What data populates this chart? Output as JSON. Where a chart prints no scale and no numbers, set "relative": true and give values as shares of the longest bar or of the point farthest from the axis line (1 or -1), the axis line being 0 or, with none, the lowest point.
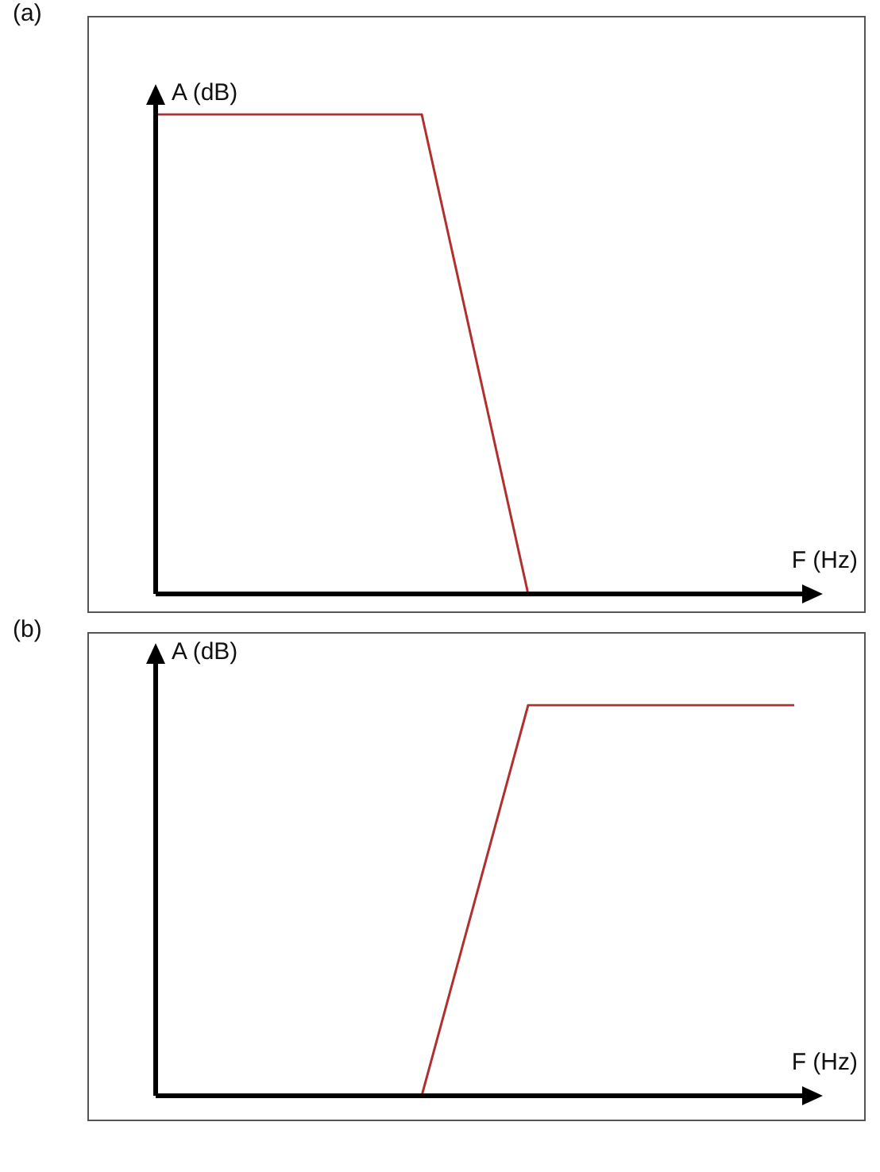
{
  "chart_data": [
    {
      "type": "line",
      "title": "(a)",
      "xlabel": "F (Hz)",
      "ylabel": "A (dB)",
      "relative": true,
      "tick_labels": false,
      "categories": [
        null,
        null,
        null,
        null,
        null,
        null,
        null,
        null,
        null,
        null,
        null,
        null,
        null,
        null,
        null,
        null,
        null,
        null,
        null,
        null,
        null,
        null,
        null,
        null,
        null
      ],
      "series": [
        {
          "color": "#b03030",
          "values": [
            1,
            null,
            null,
            null,
            null,
            null,
            null,
            null,
            null,
            null,
            1,
            null,
            null,
            null,
            0,
            null,
            null,
            null,
            null,
            null,
            null,
            null,
            null,
            null,
            0
          ]
        }
      ]
    },
    {
      "type": "line",
      "title": "(b)",
      "xlabel": "F (Hz)",
      "ylabel": "A (dB)",
      "relative": true,
      "tick_labels": false,
      "categories": [
        null,
        null,
        null,
        null,
        null,
        null,
        null,
        null,
        null,
        null,
        null,
        null,
        null,
        null,
        null,
        null,
        null,
        null,
        null,
        null,
        null,
        null,
        null,
        null,
        null
      ],
      "series": [
        {
          "color": "#b03030",
          "values": [
            0,
            null,
            null,
            null,
            null,
            null,
            null,
            null,
            null,
            null,
            0,
            null,
            null,
            null,
            1,
            null,
            null,
            null,
            null,
            null,
            null,
            null,
            null,
            null,
            1
          ]
        }
      ]
    }
  ]
}
